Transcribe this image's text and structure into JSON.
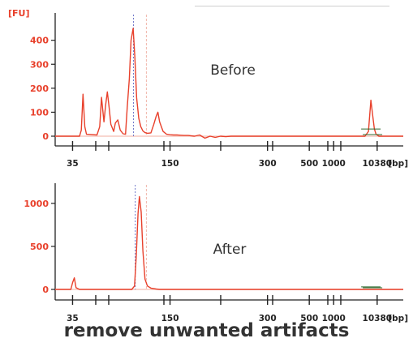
{
  "caption": "remove unwanted artifacts",
  "colors": {
    "trace": "#e8402b",
    "axis_text": "#e8402b",
    "ladder_line": "#6f77c9",
    "marker_line": "#f0b5aa",
    "fit_line": "#2f6a2f",
    "baseline": "#f6c9bf",
    "caption": "#333333"
  },
  "chart_data": [
    {
      "type": "line",
      "panel_label": "Before",
      "y_unit_label": "[FU]",
      "x_unit_label": "[bp]",
      "y_ticks": [
        0,
        100,
        200,
        300,
        400
      ],
      "ylim": [
        -40,
        480
      ],
      "x_tick_labels": [
        "35",
        "150",
        "300",
        "500",
        "1000",
        "10380"
      ],
      "x_tick_positions": [
        0.05,
        0.33,
        0.61,
        0.73,
        0.8,
        0.925
      ],
      "ladder_marker_positions": [
        0.225,
        0.262
      ],
      "x": [
        0.0,
        0.07,
        0.075,
        0.08,
        0.085,
        0.09,
        0.12,
        0.128,
        0.133,
        0.14,
        0.145,
        0.15,
        0.155,
        0.16,
        0.168,
        0.173,
        0.18,
        0.187,
        0.195,
        0.202,
        0.207,
        0.213,
        0.218,
        0.224,
        0.229,
        0.234,
        0.24,
        0.246,
        0.252,
        0.258,
        0.265,
        0.275,
        0.283,
        0.29,
        0.295,
        0.3,
        0.31,
        0.32,
        0.33,
        0.34,
        0.35,
        0.36,
        0.37,
        0.382,
        0.4,
        0.415,
        0.43,
        0.445,
        0.46,
        0.475,
        0.49,
        0.505,
        0.52,
        0.55,
        0.6,
        0.7,
        0.8,
        0.86,
        0.88,
        0.89,
        0.9,
        0.907,
        0.912,
        0.917,
        0.922,
        0.93,
        0.94,
        0.96,
        1.0
      ],
      "y": [
        0,
        0,
        25,
        175,
        40,
        8,
        5,
        40,
        162,
        60,
        130,
        185,
        120,
        50,
        20,
        55,
        68,
        25,
        10,
        8,
        120,
        240,
        400,
        450,
        330,
        160,
        75,
        40,
        22,
        15,
        12,
        14,
        48,
        82,
        100,
        60,
        20,
        8,
        6,
        5,
        5,
        4,
        3,
        3,
        0,
        5,
        -8,
        0,
        -5,
        0,
        -2,
        0,
        0,
        0,
        0,
        0,
        0,
        0,
        0,
        0,
        20,
        150,
        90,
        30,
        8,
        0,
        0,
        0,
        0
      ]
    },
    {
      "type": "line",
      "panel_label": "After",
      "y_unit_label": "",
      "x_unit_label": "[bp]",
      "y_ticks": [
        0,
        500,
        1000
      ],
      "ylim": [
        -60,
        1140
      ],
      "x_tick_labels": [
        "35",
        "150",
        "300",
        "500",
        "1000",
        "10380"
      ],
      "x_tick_positions": [
        0.05,
        0.33,
        0.61,
        0.73,
        0.8,
        0.925
      ],
      "ladder_marker_positions": [
        0.23,
        0.262
      ],
      "x": [
        0.0,
        0.045,
        0.05,
        0.055,
        0.06,
        0.07,
        0.22,
        0.228,
        0.233,
        0.238,
        0.242,
        0.247,
        0.252,
        0.258,
        0.265,
        0.275,
        0.29,
        0.3,
        1.0
      ],
      "y": [
        0,
        0,
        80,
        135,
        20,
        0,
        0,
        40,
        400,
        880,
        1080,
        900,
        450,
        120,
        40,
        15,
        5,
        0,
        0
      ]
    }
  ]
}
